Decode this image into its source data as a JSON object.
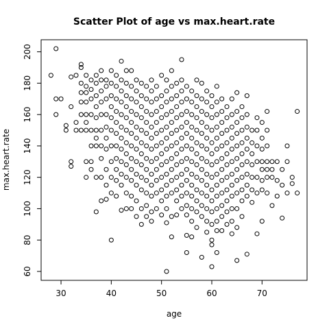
{
  "chart_data": {
    "type": "scatter",
    "title": "Scatter Plot of age vs max.heart.rate",
    "x_label": "age",
    "y_label": "max.heart.rate",
    "x": [
      28,
      29,
      29,
      29,
      30,
      31,
      31,
      32,
      32,
      32,
      32,
      33,
      33,
      33,
      34,
      34,
      34,
      34,
      34,
      34,
      34,
      35,
      35,
      35,
      35,
      35,
      35,
      35,
      35,
      35,
      36,
      36,
      36,
      36,
      36,
      36,
      36,
      36,
      37,
      37,
      37,
      37,
      37,
      37,
      37,
      37,
      37,
      37,
      38,
      38,
      38,
      38,
      38,
      38,
      38,
      38,
      38,
      38,
      39,
      39,
      39,
      39,
      39,
      39,
      39,
      39,
      39,
      39,
      40,
      40,
      40,
      40,
      40,
      40,
      40,
      40,
      40,
      40,
      40,
      41,
      41,
      41,
      41,
      41,
      41,
      41,
      41,
      41,
      41,
      41,
      42,
      42,
      42,
      42,
      42,
      42,
      42,
      42,
      42,
      42,
      42,
      42,
      43,
      43,
      43,
      43,
      43,
      43,
      43,
      43,
      43,
      43,
      43,
      43,
      44,
      44,
      44,
      44,
      44,
      44,
      44,
      44,
      44,
      44,
      44,
      44,
      45,
      45,
      45,
      45,
      45,
      45,
      45,
      45,
      45,
      45,
      45,
      45,
      46,
      46,
      46,
      46,
      46,
      46,
      46,
      46,
      46,
      46,
      46,
      46,
      47,
      47,
      47,
      47,
      47,
      47,
      47,
      47,
      47,
      47,
      47,
      47,
      48,
      48,
      48,
      48,
      48,
      48,
      48,
      48,
      48,
      48,
      48,
      48,
      48,
      49,
      49,
      49,
      49,
      49,
      49,
      49,
      49,
      49,
      49,
      49,
      50,
      50,
      50,
      50,
      50,
      50,
      50,
      50,
      50,
      50,
      50,
      50,
      51,
      51,
      51,
      51,
      51,
      51,
      51,
      51,
      51,
      51,
      51,
      51,
      51,
      51,
      52,
      52,
      52,
      52,
      52,
      52,
      52,
      52,
      52,
      52,
      52,
      52,
      52,
      53,
      53,
      53,
      53,
      53,
      53,
      53,
      53,
      53,
      53,
      53,
      53,
      54,
      54,
      54,
      54,
      54,
      54,
      54,
      54,
      54,
      54,
      54,
      54,
      54,
      55,
      55,
      55,
      55,
      55,
      55,
      55,
      55,
      55,
      55,
      55,
      55,
      55,
      55,
      56,
      56,
      56,
      56,
      56,
      56,
      56,
      56,
      56,
      56,
      56,
      56,
      56,
      57,
      57,
      57,
      57,
      57,
      57,
      57,
      57,
      57,
      57,
      57,
      57,
      57,
      58,
      58,
      58,
      58,
      58,
      58,
      58,
      58,
      58,
      58,
      58,
      58,
      58,
      59,
      59,
      59,
      59,
      59,
      59,
      59,
      59,
      59,
      59,
      59,
      59,
      59,
      60,
      60,
      60,
      60,
      60,
      60,
      60,
      60,
      60,
      60,
      60,
      60,
      60,
      60,
      60,
      61,
      61,
      61,
      61,
      61,
      61,
      61,
      61,
      61,
      61,
      61,
      61,
      61,
      61,
      62,
      62,
      62,
      62,
      62,
      62,
      62,
      62,
      62,
      62,
      62,
      62,
      63,
      63,
      63,
      63,
      63,
      63,
      63,
      63,
      63,
      63,
      63,
      64,
      64,
      64,
      64,
      64,
      64,
      64,
      64,
      64,
      64,
      64,
      64,
      65,
      65,
      65,
      65,
      65,
      65,
      65,
      65,
      65,
      65,
      65,
      65,
      66,
      66,
      66,
      66,
      66,
      66,
      66,
      66,
      66,
      66,
      67,
      67,
      67,
      67,
      67,
      67,
      67,
      67,
      67,
      67,
      68,
      68,
      68,
      68,
      68,
      68,
      68,
      69,
      69,
      69,
      69,
      69,
      69,
      69,
      70,
      70,
      70,
      70,
      70,
      70,
      70,
      70,
      71,
      71,
      71,
      71,
      71,
      71,
      71,
      72,
      72,
      72,
      72,
      73,
      73,
      73,
      74,
      74,
      74,
      75,
      75,
      75,
      76,
      76,
      77,
      77
    ],
    "values": [
      185,
      202,
      170,
      160,
      170,
      150,
      153,
      184,
      165,
      130,
      127,
      185,
      155,
      150,
      192,
      190,
      180,
      174,
      168,
      160,
      150,
      185,
      178,
      174,
      168,
      160,
      155,
      150,
      130,
      120,
      182,
      176,
      170,
      160,
      150,
      140,
      130,
      125,
      185,
      180,
      172,
      165,
      158,
      150,
      145,
      140,
      120,
      98,
      188,
      182,
      175,
      168,
      160,
      150,
      140,
      132,
      120,
      105,
      182,
      178,
      170,
      160,
      152,
      145,
      138,
      125,
      115,
      106,
      188,
      180,
      172,
      165,
      158,
      150,
      140,
      130,
      120,
      110,
      80,
      185,
      178,
      170,
      162,
      155,
      148,
      140,
      132,
      125,
      118,
      108,
      194,
      182,
      175,
      168,
      160,
      152,
      145,
      138,
      130,
      122,
      115,
      99,
      188,
      180,
      172,
      165,
      158,
      150,
      142,
      135,
      128,
      120,
      110,
      100,
      188,
      178,
      170,
      162,
      155,
      148,
      140,
      132,
      125,
      118,
      108,
      100,
      182,
      175,
      168,
      160,
      152,
      145,
      138,
      130,
      122,
      115,
      105,
      95,
      180,
      172,
      165,
      158,
      150,
      142,
      135,
      128,
      120,
      112,
      100,
      90,
      178,
      170,
      162,
      155,
      148,
      140,
      132,
      125,
      118,
      110,
      102,
      95,
      182,
      175,
      168,
      160,
      152,
      145,
      138,
      130,
      122,
      115,
      108,
      98,
      92,
      178,
      170,
      162,
      155,
      148,
      140,
      132,
      125,
      118,
      110,
      100,
      185,
      172,
      165,
      158,
      150,
      142,
      135,
      128,
      120,
      112,
      105,
      96,
      182,
      175,
      168,
      160,
      152,
      145,
      138,
      130,
      122,
      115,
      108,
      100,
      91,
      60,
      188,
      178,
      170,
      162,
      155,
      148,
      140,
      132,
      125,
      118,
      110,
      95,
      82,
      180,
      172,
      165,
      158,
      150,
      142,
      135,
      128,
      120,
      112,
      105,
      96,
      195,
      182,
      175,
      168,
      160,
      152,
      145,
      138,
      130,
      122,
      115,
      108,
      100,
      178,
      170,
      162,
      155,
      148,
      140,
      132,
      125,
      118,
      110,
      102,
      96,
      83,
      72,
      175,
      168,
      160,
      152,
      145,
      138,
      130,
      122,
      115,
      108,
      100,
      92,
      82,
      182,
      172,
      165,
      158,
      150,
      142,
      135,
      128,
      120,
      112,
      105,
      98,
      88,
      180,
      170,
      162,
      155,
      148,
      140,
      132,
      125,
      118,
      110,
      102,
      95,
      69,
      175,
      168,
      160,
      152,
      145,
      138,
      130,
      122,
      115,
      108,
      100,
      92,
      85,
      172,
      165,
      158,
      150,
      142,
      135,
      128,
      120,
      112,
      105,
      98,
      90,
      63,
      80,
      77,
      178,
      168,
      160,
      152,
      145,
      138,
      130,
      122,
      115,
      108,
      100,
      92,
      86,
      72,
      170,
      162,
      155,
      148,
      140,
      132,
      125,
      118,
      110,
      102,
      95,
      86,
      165,
      158,
      150,
      142,
      135,
      128,
      120,
      112,
      105,
      98,
      90,
      170,
      160,
      152,
      145,
      138,
      130,
      122,
      115,
      108,
      100,
      92,
      84,
      174,
      162,
      155,
      148,
      140,
      132,
      125,
      118,
      110,
      100,
      88,
      67,
      165,
      158,
      150,
      142,
      135,
      128,
      120,
      112,
      105,
      95,
      172,
      160,
      152,
      145,
      138,
      130,
      122,
      115,
      108,
      71,
      150,
      142,
      135,
      128,
      120,
      112,
      104,
      158,
      150,
      140,
      130,
      120,
      110,
      84,
      155,
      145,
      138,
      130,
      125,
      118,
      112,
      92,
      162,
      150,
      140,
      130,
      125,
      120,
      110,
      130,
      125,
      120,
      102,
      130,
      118,
      108,
      125,
      115,
      94,
      140,
      130,
      110,
      120,
      116,
      162,
      110
    ],
    "color": "#000000",
    "xlim": [
      26.04,
      78.96
    ],
    "xticks": [
      30,
      40,
      50,
      60,
      70
    ],
    "ylim": [
      54.32,
      207.68
    ],
    "yticks": [
      60,
      80,
      100,
      120,
      140,
      160,
      180,
      200
    ]
  }
}
